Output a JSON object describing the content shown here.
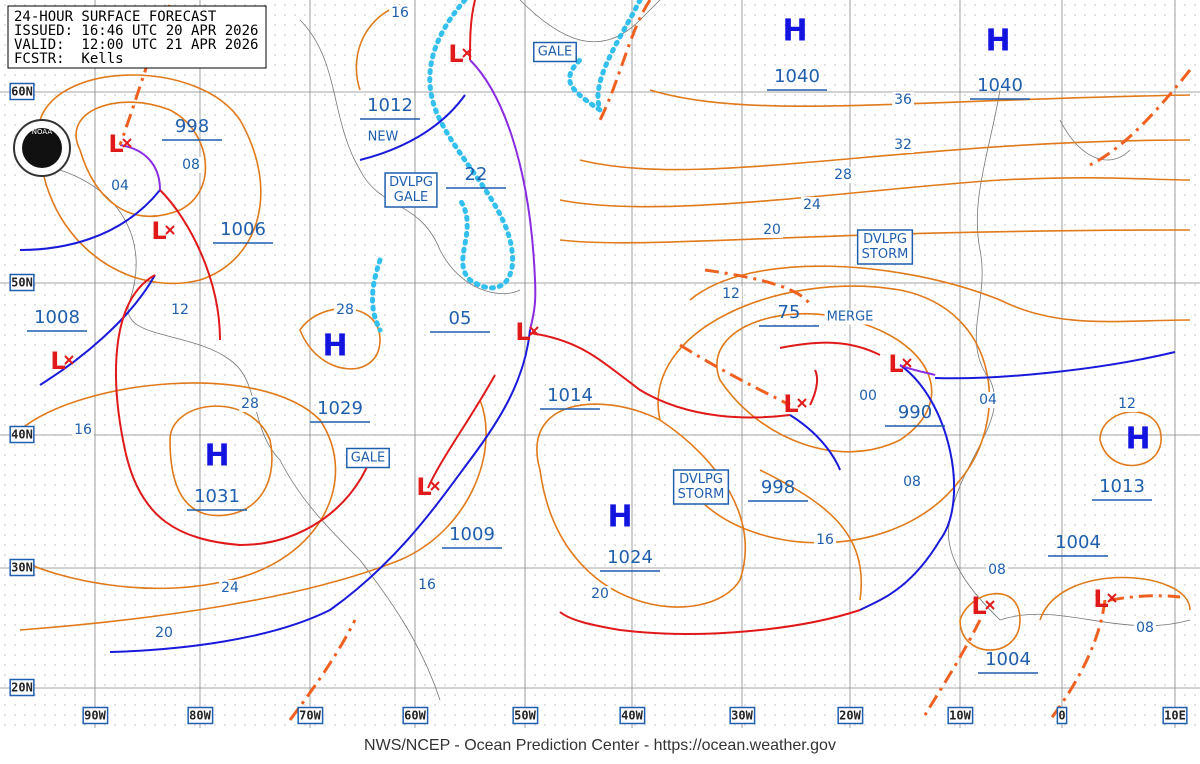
{
  "header": {
    "lines": [
      "24-HOUR SURFACE FORECAST",
      "ISSUED: 16:46 UTC 20 APR 2026",
      "VALID:  12:00 UTC 21 APR 2026",
      "FCSTR:  Kells"
    ]
  },
  "logo": "NOAA",
  "latitudes": [
    "60N",
    "50N",
    "40N",
    "30N",
    "20N"
  ],
  "longitudes": [
    "90W",
    "80W",
    "70W",
    "60W",
    "50W",
    "40W",
    "30W",
    "20W",
    "10W",
    "0",
    "10E"
  ],
  "highs": [
    "H",
    "H",
    "H",
    "H",
    "H",
    "H"
  ],
  "lows": [
    "L",
    "L",
    "L",
    "L",
    "L",
    "L",
    "L",
    "L",
    "L",
    "L"
  ],
  "pressure_values": [
    "1040",
    "1040",
    "998",
    "1006",
    "1008",
    "1012",
    "22",
    "05",
    "75",
    "1014",
    "1029",
    "1031",
    "1009",
    "1024",
    "998",
    "990",
    "1013",
    "1004",
    "1004"
  ],
  "isobar_labels": [
    "16",
    "36",
    "32",
    "28",
    "24",
    "20",
    "12",
    "08",
    "04",
    "12",
    "28",
    "28",
    "16",
    "00",
    "04",
    "12",
    "08",
    "16",
    "08",
    "08",
    "16",
    "24",
    "20",
    "20"
  ],
  "boxed_annotations": [
    {
      "lines": [
        "GALE"
      ]
    },
    {
      "lines": [
        "DVLPG",
        "GALE"
      ]
    },
    {
      "lines": [
        "DVLPG",
        "STORM"
      ]
    },
    {
      "lines": [
        "DVLPG",
        "STORM"
      ]
    },
    {
      "lines": [
        "GALE"
      ]
    }
  ],
  "annotations": [
    "NEW",
    "MERGE"
  ],
  "footer": "NWS/NCEP - Ocean Prediction Center - https://ocean.weather.gov"
}
